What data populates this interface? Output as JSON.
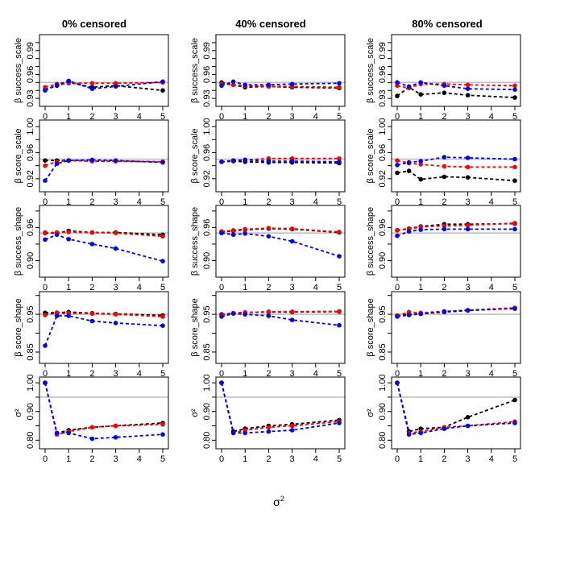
{
  "figure": {
    "columns": [
      "0% censored",
      "40% censored",
      "80% censored"
    ],
    "x_axis_label": "σ",
    "x_axis_label_sup": "2"
  },
  "chart_data": {
    "type": "line",
    "x": [
      0,
      0.5,
      1,
      2,
      3,
      5
    ],
    "x_ticks": [
      "0",
      "1",
      "2",
      "3",
      "4",
      "5"
    ],
    "xlim": [
      0,
      5
    ],
    "reference_line_color": "#c0c0c0",
    "series_colors": {
      "black": "#000000",
      "red": "#ff0000",
      "blue": "#0000ff"
    },
    "rows": [
      {
        "ylabel": "β success_scale",
        "ylabel_prefix": "β",
        "ylabel_rest": " success_scale",
        "ylim": [
          0.92,
          1.01
        ],
        "yticks": [
          "0.93",
          "0.96",
          "0.99"
        ],
        "ytick_values": [
          0.93,
          0.96,
          0.99
        ],
        "hidden_ticks": [
          0.94,
          0.95,
          0.97,
          0.98,
          1.0
        ],
        "ref": 0.95,
        "panels": [
          {
            "black": [
              0.941,
              0.946,
              0.95,
              0.944,
              0.946,
              0.94
            ],
            "red": [
              0.944,
              0.948,
              0.949,
              0.949,
              0.949,
              0.95
            ],
            "blue": [
              0.94,
              0.947,
              0.952,
              0.942,
              0.945,
              0.951
            ]
          },
          {
            "black": [
              0.95,
              0.947,
              0.944,
              0.945,
              0.944,
              0.943
            ],
            "red": [
              0.948,
              0.947,
              0.946,
              0.945,
              0.945,
              0.944
            ],
            "blue": [
              0.946,
              0.951,
              0.947,
              0.947,
              0.948,
              0.949
            ]
          },
          {
            "black": [
              0.933,
              0.944,
              0.935,
              0.937,
              0.934,
              0.931
            ],
            "red": [
              0.946,
              0.943,
              0.948,
              0.948,
              0.947,
              0.946
            ],
            "blue": [
              0.95,
              0.945,
              0.95,
              0.946,
              0.942,
              0.941
            ]
          }
        ]
      },
      {
        "ylabel": "β score_scale",
        "ylabel_prefix": "β",
        "ylabel_rest": " score_scale",
        "ylim": [
          0.9,
          1.01
        ],
        "yticks": [
          "0.92",
          "0.96",
          "1.00"
        ],
        "ytick_values": [
          0.92,
          0.96,
          1.0
        ],
        "hidden_ticks": [
          0.94,
          0.98
        ],
        "ref": 0.95,
        "panels": [
          {
            "black": [
              0.948,
              0.948,
              0.948,
              0.947,
              0.947,
              0.946
            ],
            "red": [
              0.94,
              0.946,
              0.948,
              0.947,
              0.947,
              0.946
            ],
            "blue": [
              0.917,
              0.943,
              0.948,
              0.949,
              0.948,
              0.945
            ]
          },
          {
            "black": [
              0.946,
              0.947,
              0.946,
              0.945,
              0.945,
              0.944
            ],
            "red": [
              0.946,
              0.948,
              0.949,
              0.951,
              0.951,
              0.951
            ],
            "blue": [
              0.946,
              0.948,
              0.949,
              0.947,
              0.947,
              0.946
            ]
          },
          {
            "black": [
              0.929,
              0.932,
              0.919,
              0.923,
              0.922,
              0.917
            ],
            "red": [
              0.948,
              0.944,
              0.942,
              0.939,
              0.938,
              0.938
            ],
            "blue": [
              0.941,
              0.945,
              0.947,
              0.953,
              0.952,
              0.95
            ]
          }
        ]
      },
      {
        "ylabel": "β success_shape",
        "ylabel_prefix": "β",
        "ylabel_rest": " success_shape",
        "ylim": [
          0.87,
          1.0
        ],
        "yticks": [
          "0.90",
          "0.96"
        ],
        "ytick_values": [
          0.9,
          0.96
        ],
        "hidden_ticks": [
          0.93,
          0.99
        ],
        "ref": 0.95,
        "panels": [
          {
            "black": [
              0.95,
              0.95,
              0.954,
              0.951,
              0.951,
              0.947
            ],
            "red": [
              0.951,
              0.951,
              0.952,
              0.951,
              0.95,
              0.944
            ],
            "blue": [
              0.938,
              0.947,
              0.939,
              0.93,
              0.922,
              0.899
            ]
          },
          {
            "black": [
              0.952,
              0.954,
              0.956,
              0.958,
              0.957,
              0.951
            ],
            "red": [
              0.953,
              0.955,
              0.957,
              0.959,
              0.958,
              0.952
            ],
            "blue": [
              0.95,
              0.947,
              0.949,
              0.944,
              0.935,
              0.908
            ]
          },
          {
            "black": [
              0.955,
              0.958,
              0.962,
              0.966,
              0.966,
              0.967
            ],
            "red": [
              0.955,
              0.957,
              0.961,
              0.963,
              0.964,
              0.968
            ],
            "blue": [
              0.945,
              0.953,
              0.956,
              0.957,
              0.957,
              0.957
            ]
          }
        ]
      },
      {
        "ylabel": "β score_shape",
        "ylabel_prefix": "β",
        "ylabel_rest": " score_shape",
        "ylim": [
          0.82,
          1.01
        ],
        "yticks": [
          "0.85",
          "0.95"
        ],
        "ytick_values": [
          0.85,
          0.95
        ],
        "hidden_ticks": [
          0.9,
          1.0
        ],
        "ref": 0.95,
        "panels": [
          {
            "black": [
              0.954,
              0.954,
              0.956,
              0.953,
              0.951,
              0.947
            ],
            "red": [
              0.948,
              0.953,
              0.953,
              0.952,
              0.95,
              0.944
            ],
            "blue": [
              0.867,
              0.946,
              0.946,
              0.932,
              0.927,
              0.92
            ]
          },
          {
            "black": [
              0.95,
              0.953,
              0.955,
              0.956,
              0.956,
              0.957
            ],
            "red": [
              0.948,
              0.953,
              0.955,
              0.957,
              0.957,
              0.958
            ],
            "blue": [
              0.944,
              0.952,
              0.95,
              0.946,
              0.935,
              0.921
            ]
          },
          {
            "black": [
              0.946,
              0.95,
              0.952,
              0.956,
              0.96,
              0.966
            ],
            "red": [
              0.947,
              0.956,
              0.954,
              0.958,
              0.961,
              0.967
            ],
            "blue": [
              0.944,
              0.948,
              0.951,
              0.957,
              0.961,
              0.965
            ]
          }
        ]
      },
      {
        "ylabel": "σ²",
        "ylabel_prefix": "",
        "ylabel_rest": "σ²",
        "ylim": [
          0.77,
          1.02
        ],
        "yticks": [
          "0.80",
          "0.90",
          "1.00"
        ],
        "ytick_values": [
          0.8,
          0.9,
          1.0
        ],
        "hidden_ticks": [
          0.85,
          0.95
        ],
        "ref": 0.95,
        "panels": [
          {
            "black": [
              1.0,
              0.825,
              0.835,
              0.845,
              0.85,
              0.86
            ],
            "red": [
              1.0,
              0.82,
              0.83,
              0.845,
              0.85,
              0.855
            ],
            "blue": [
              1.0,
              0.825,
              0.825,
              0.805,
              0.81,
              0.82
            ]
          },
          {
            "black": [
              1.0,
              0.83,
              0.84,
              0.85,
              0.855,
              0.87
            ],
            "red": [
              1.0,
              0.825,
              0.835,
              0.845,
              0.85,
              0.865
            ],
            "blue": [
              1.0,
              0.825,
              0.825,
              0.83,
              0.835,
              0.86
            ]
          },
          {
            "black": [
              1.0,
              0.83,
              0.84,
              0.845,
              0.88,
              0.94
            ],
            "red": [
              1.0,
              0.825,
              0.83,
              0.845,
              0.85,
              0.865
            ],
            "blue": [
              1.0,
              0.82,
              0.825,
              0.84,
              0.85,
              0.86
            ]
          }
        ]
      }
    ]
  }
}
